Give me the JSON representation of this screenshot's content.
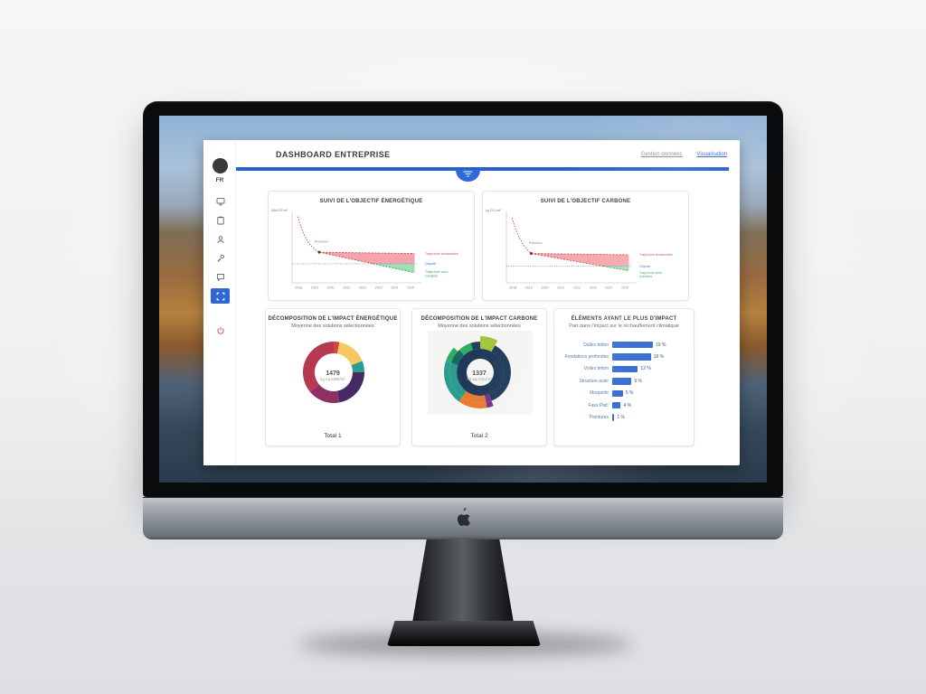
{
  "accent_color": "#2462cf",
  "header": {
    "title": "DASHBOARD ENTREPRISE",
    "links": [
      {
        "label": "Gestion données"
      },
      {
        "label": "Visualisation"
      }
    ]
  },
  "sidebar": {
    "avatar": "FR",
    "items": [
      {
        "icon": "devices-icon"
      },
      {
        "icon": "clipboard-icon"
      },
      {
        "icon": "user-icon"
      },
      {
        "icon": "build-icon"
      },
      {
        "icon": "chat-icon"
      },
      {
        "icon": "dashboard-icon",
        "selected": true
      },
      {
        "icon": "power-icon"
      }
    ]
  },
  "cards": {
    "energy_line": {
      "title": "SUIVI DE L'OBJECTIF ÉNERGÉTIQUE"
    },
    "carbon_line": {
      "title": "SUIVI DE L'OBJECTIF CARBONE"
    },
    "energy_donut": {
      "title": "DÉCOMPOSITION DE L'IMPACT ÉNERGÉTIQUE",
      "subtitle": "Moyenne des solutions sélectionnées",
      "center_value": "1479",
      "center_unit": "kg eq kWh/m²",
      "footer": "Total 1"
    },
    "carbon_donut": {
      "title": "DÉCOMPOSITION DE L'IMPACT CARBONE",
      "subtitle": "Moyenne des solutions sélectionnées",
      "center_value": "1337",
      "center_unit": "kg eq CO₂/m²",
      "footer": "Total 2"
    },
    "impact_bars": {
      "title": "ÉLÉMENTS AYANT LE PLUS D'IMPACT",
      "subtitle": "Part dans l'impact sur le réchauffement climatique"
    }
  },
  "chart_data": [
    {
      "name": "energy-objective",
      "type": "line",
      "title": "SUIVI DE L'OBJECTIF ÉNERGÉTIQUE",
      "ylabel": "kWh EF/m²",
      "xlim": [
        2017.6,
        2025.45
      ],
      "ylim": [
        0,
        112
      ],
      "ticks": [
        "2018",
        "2019",
        "2020",
        "2021",
        "2022",
        "2023",
        "2024",
        "2025"
      ],
      "tick_x": [
        2018,
        2019,
        2020,
        2021,
        2022,
        2023,
        2024,
        2025
      ],
      "annotation": {
        "text": "Prévision",
        "x": 2019.0,
        "y": 63
      },
      "marker": {
        "x": 2019.3,
        "y": 48,
        "color": "#7a1f1f"
      },
      "areas": [
        {
          "name": "ecart-defavorable",
          "color": "#f2949b",
          "points": [
            [
              2019.3,
              48
            ],
            [
              2025.25,
              46
            ],
            [
              2025.25,
              30
            ],
            [
              2022.65,
              30
            ]
          ]
        },
        {
          "name": "gain-favorable",
          "color": "#93d8a4",
          "points": [
            [
              2022.65,
              30
            ],
            [
              2025.25,
              30
            ],
            [
              2025.25,
              16
            ]
          ]
        }
      ],
      "series": [
        {
          "name": "historique",
          "color": "#d05050",
          "dash": "1.6,1.4",
          "points": [
            [
              2017.95,
              104
            ],
            [
              2018.15,
              88
            ],
            [
              2018.4,
              73
            ],
            [
              2018.65,
              62
            ],
            [
              2018.95,
              54
            ],
            [
              2019.1,
              50.5
            ],
            [
              2019.3,
              48
            ]
          ]
        },
        {
          "name": "projection-tendancielle",
          "color": "#c94a4a",
          "dash": "2,1.6",
          "points": [
            [
              2019.3,
              48
            ],
            [
              2025.25,
              46
            ]
          ]
        },
        {
          "name": "objectif",
          "color": "#4a6fd0",
          "dash": "0.8,1.6",
          "width": 0.7,
          "points": [
            [
              2017.6,
              30
            ],
            [
              2025.45,
              30
            ]
          ]
        },
        {
          "name": "solutions-au-dessus-objectif",
          "color": "#c94a4a",
          "dash": "2,1.6",
          "points": [
            [
              2019.3,
              48
            ],
            [
              2022.65,
              30
            ]
          ]
        },
        {
          "name": "solutions-sous-objectif",
          "color": "#3f9e5f",
          "dash": "2,1.6",
          "points": [
            [
              2022.65,
              30
            ],
            [
              2025.25,
              16
            ]
          ]
        }
      ],
      "right_labels": [
        {
          "text": "Trajectoire tendancielle",
          "color": "#d05050",
          "y": 46
        },
        {
          "text": "Objectif",
          "color": "#4a6fd0",
          "y": 30
        },
        {
          "text": "Trajectoire avec",
          "color": "#3f9e5f",
          "y": 17
        },
        {
          "text": "solutions",
          "color": "#3f9e5f",
          "y": 11
        }
      ]
    },
    {
      "name": "carbon-objective",
      "type": "line",
      "title": "SUIVI DE L'OBJECTIF CARBONE",
      "ylabel": "kg CO₂/m²",
      "xlim": [
        2017.6,
        2025.45
      ],
      "ylim": [
        0,
        112
      ],
      "ticks": [
        "2018",
        "2019",
        "2020",
        "2021",
        "2022",
        "2023",
        "2024",
        "2025"
      ],
      "tick_x": [
        2018,
        2019,
        2020,
        2021,
        2022,
        2023,
        2024,
        2025
      ],
      "annotation": {
        "text": "Prévision",
        "x": 2019.0,
        "y": 61
      },
      "marker": {
        "x": 2019.15,
        "y": 46,
        "color": "#7a1f1f"
      },
      "areas": [
        {
          "name": "ecart-defavorable",
          "color": "#f2949b",
          "points": [
            [
              2019.15,
              46
            ],
            [
              2025.25,
              44
            ],
            [
              2025.25,
              26
            ],
            [
              2023.66,
              26
            ]
          ]
        },
        {
          "name": "gain-favorable",
          "color": "#93d8a4",
          "points": [
            [
              2023.66,
              26
            ],
            [
              2025.25,
              26
            ],
            [
              2025.25,
              19
            ]
          ]
        }
      ],
      "series": [
        {
          "name": "historique",
          "color": "#d05050",
          "dash": "1.6,1.4",
          "points": [
            [
              2017.95,
              102
            ],
            [
              2018.15,
              86
            ],
            [
              2018.4,
              71
            ],
            [
              2018.65,
              60
            ],
            [
              2018.9,
              52
            ],
            [
              2019.05,
              48.5
            ],
            [
              2019.15,
              46
            ]
          ]
        },
        {
          "name": "projection-tendancielle",
          "color": "#c94a4a",
          "dash": "2,1.6",
          "points": [
            [
              2019.15,
              46
            ],
            [
              2025.25,
              44
            ]
          ]
        },
        {
          "name": "objectif",
          "color": "#4a6fd0",
          "dash": "0.8,1.6",
          "width": 0.7,
          "points": [
            [
              2017.6,
              26
            ],
            [
              2025.45,
              26
            ]
          ]
        },
        {
          "name": "solutions-au-dessus-objectif",
          "color": "#c94a4a",
          "dash": "2,1.6",
          "points": [
            [
              2019.15,
              46
            ],
            [
              2023.66,
              26
            ]
          ]
        },
        {
          "name": "solutions-sous-objectif",
          "color": "#3f9e5f",
          "dash": "2,1.6",
          "points": [
            [
              2023.66,
              26
            ],
            [
              2025.25,
              19
            ]
          ]
        }
      ],
      "right_labels": [
        {
          "text": "Trajectoire tendancielle",
          "color": "#d05050",
          "y": 44
        },
        {
          "text": "Objectif",
          "color": "#4a6fd0",
          "y": 26
        },
        {
          "text": "Trajectoire avec",
          "color": "#3f9e5f",
          "y": 16
        },
        {
          "text": "solutions",
          "color": "#3f9e5f",
          "y": 10
        }
      ]
    },
    {
      "name": "energy-impact-donut",
      "type": "pie",
      "title": "DÉCOMPOSITION DE L'IMPACT ÉNERGÉTIQUE",
      "center_value": "1479",
      "center_unit": "kg eq kWh/m²",
      "rings": [
        {
          "r0": 21,
          "r1": 34,
          "segs": [
            [
              3,
              "#d24747"
            ],
            [
              16,
              "#f6c85f"
            ],
            [
              6,
              "#2a9d8f"
            ],
            [
              22,
              "#472a63"
            ],
            [
              17,
              "#8f2f62"
            ],
            [
              36,
              "#b53a50"
            ]
          ]
        }
      ]
    },
    {
      "name": "carbon-impact-sunburst",
      "type": "pie",
      "title": "DÉCOMPOSITION DE L'IMPACT CARBONE",
      "center_value": "1337",
      "center_unit": "kg eq CO₂/m²",
      "bg": "#f5f5f3",
      "rings": [
        {
          "r0": 15,
          "r1": 26,
          "segs": [
            [
              100,
              "#20395a"
            ]
          ]
        },
        {
          "r0": 26,
          "r1": 34,
          "segs": [
            [
              8,
              "#a4c639"
            ],
            [
              36,
              "#20395a"
            ],
            [
              3,
              "#7b2f86"
            ],
            [
              13,
              "#e87a2e"
            ],
            [
              20,
              "#2a9d8f"
            ],
            [
              8,
              "#186a63"
            ],
            [
              7,
              "#2fae62"
            ],
            [
              5,
              "#24425f"
            ]
          ]
        },
        {
          "r0": 34,
          "r1": 40,
          "segs": [
            [
              8,
              "#a4c639"
            ],
            [
              36,
              "none"
            ],
            [
              3,
              "#7b2f86"
            ],
            [
              13,
              "#e87a2e"
            ],
            [
              20,
              "#2a9d8f"
            ],
            [
              7,
              "#2fae62"
            ],
            [
              13,
              "none"
            ]
          ]
        }
      ]
    },
    {
      "name": "top-impact-elements",
      "type": "bar",
      "title": "ÉLÉMENTS AYANT LE PLUS D'IMPACT",
      "categories": [
        "Dalles béton",
        "Fondations profondes",
        "Voiles béton",
        "Structure acier",
        "Moquette",
        "Faux Plaf.",
        "Peintures"
      ],
      "values": [
        19,
        18,
        12,
        9,
        5,
        4,
        1
      ],
      "value_labels": [
        "19 %",
        "18 %",
        "12 %",
        "9 %",
        "5 %",
        "4 %",
        "1 %"
      ],
      "bar_color": "#2f66d0",
      "xlim": [
        0,
        21
      ]
    }
  ]
}
